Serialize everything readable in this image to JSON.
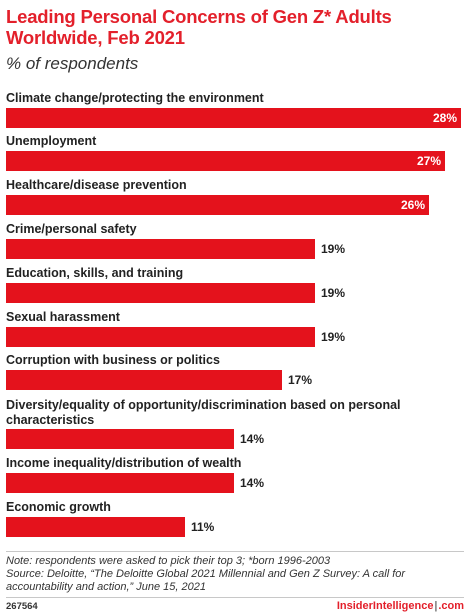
{
  "header": {
    "title": "Leading Personal Concerns of Gen Z* Adults Worldwide, Feb 2021",
    "subtitle": "% of respondents"
  },
  "chart_data": {
    "type": "bar",
    "orientation": "horizontal",
    "title": "Leading Personal Concerns of Gen Z* Adults Worldwide, Feb 2021",
    "subtitle": "% of respondents",
    "categories": [
      "Climate change/protecting the environment",
      "Unemployment",
      "Healthcare/disease prevention",
      "Crime/personal safety",
      "Education, skills, and training",
      "Sexual harassment",
      "Corruption with business or politics",
      "Diversity/equality of opportunity/discrimination based on personal characteristics",
      "Income inequality/distribution of wealth",
      "Economic growth"
    ],
    "values": [
      28,
      27,
      26,
      19,
      19,
      19,
      17,
      14,
      14,
      11
    ],
    "value_labels": [
      "28%",
      "27%",
      "26%",
      "19%",
      "19%",
      "19%",
      "17%",
      "14%",
      "14%",
      "11%"
    ],
    "bar_color": "#e4121c",
    "grid": false,
    "legend": "none"
  },
  "footer": {
    "note": "Note: respondents were asked to pick their top 3; *born 1996-2003",
    "source": "Source: Deloitte, “The Deloitte Global 2021 Millennial and Gen Z Survey: A call for accountability and action,” June 15, 2021",
    "chart_id": "267564",
    "brand_left": "InsiderIntelligence",
    "brand_right": ".com"
  },
  "colors": {
    "accent": "#e3202b",
    "bar": "#e4121c"
  }
}
